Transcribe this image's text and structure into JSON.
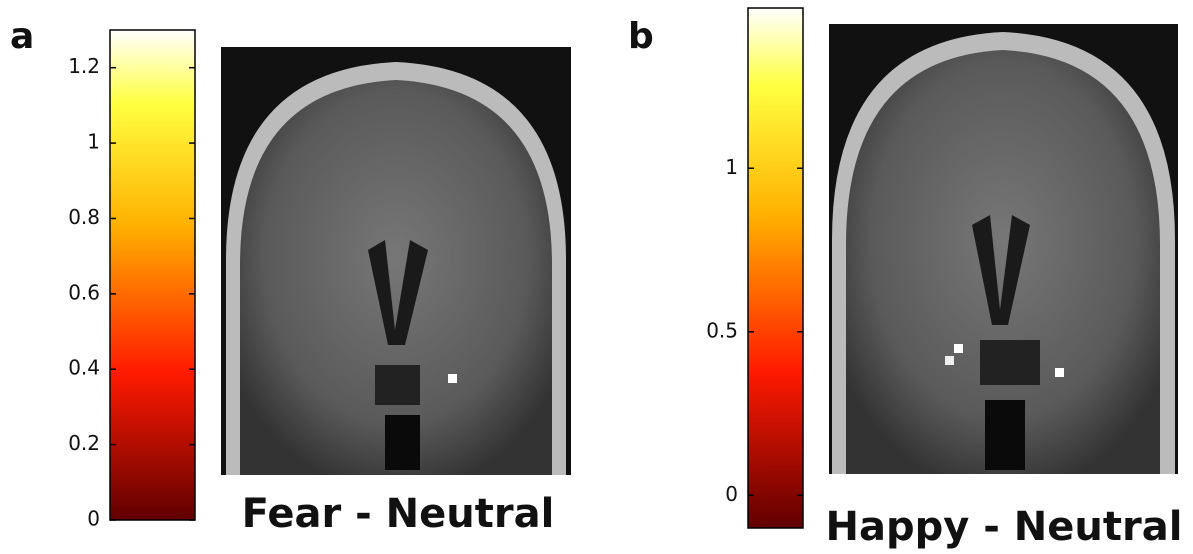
{
  "panels": [
    {
      "label": "a",
      "caption": "Fear - Neutral",
      "colorbar": {
        "lim": [
          0,
          1.3
        ],
        "ticks": [
          0,
          0.2,
          0.4,
          0.6,
          0.8,
          1,
          1.2
        ]
      }
    },
    {
      "label": "b",
      "caption": "Happy - Neutral",
      "colorbar": {
        "lim": [
          -0.1,
          1.49
        ],
        "ticks": [
          0,
          0.5,
          1
        ]
      }
    }
  ]
}
